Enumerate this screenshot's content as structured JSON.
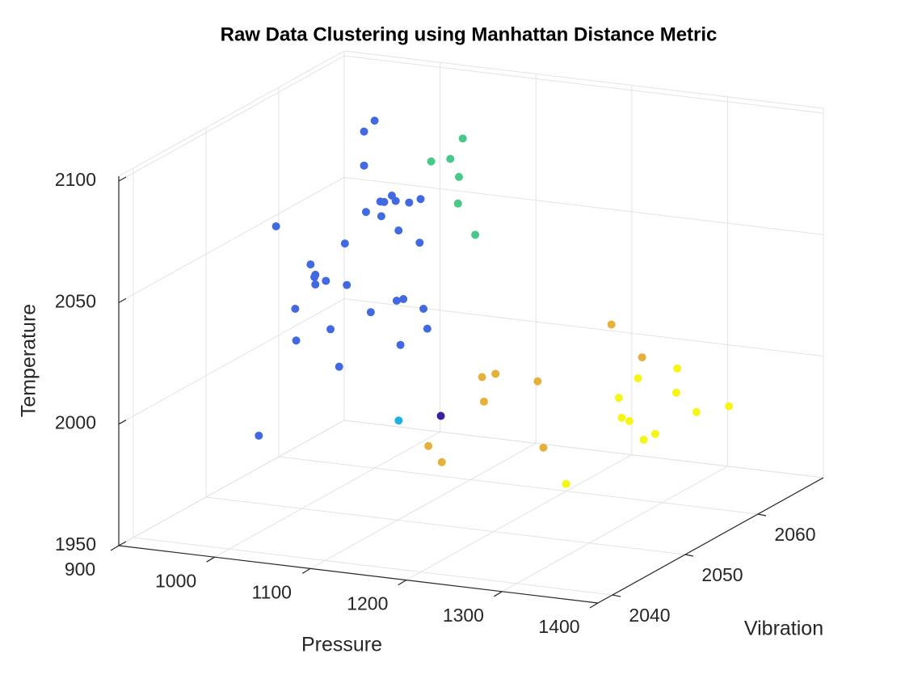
{
  "chart_data": {
    "type": "scatter3d",
    "title": "Raw Data Clustering using Manhattan Distance Metric",
    "xlabel": "Pressure",
    "ylabel": "Vibration",
    "zlabel": "Temperature",
    "xlim": [
      900,
      1400
    ],
    "ylim": [
      2038,
      2069
    ],
    "zlim": [
      1950,
      2102
    ],
    "xticks": [
      900,
      1000,
      1100,
      1200,
      1300,
      1400
    ],
    "yticks": [
      2040,
      2050,
      2060
    ],
    "zticks": [
      1950,
      2000,
      2050,
      2100
    ],
    "grid": true,
    "series": [
      {
        "color": "#4169e1",
        "x": [
          1000,
          989,
          989,
          1011,
          1006,
          1010,
          1018,
          1022,
          1036,
          1048,
          991,
          1007,
          1025,
          1047,
          969,
          1047,
          1052,
          1051,
          1063,
          1052,
          971,
          1030,
          1023,
          1051,
          1031,
          996,
          1055,
          954,
          1032,
          1027,
          963,
          993
        ],
        "y": [
          2060,
          2060,
          2060,
          2045,
          2060,
          2060,
          2060,
          2060,
          2060,
          2060,
          2060,
          2060,
          2060,
          2060,
          2060,
          2045,
          2045,
          2045,
          2045,
          2045,
          2060,
          2060,
          2060,
          2060,
          2045,
          2060,
          2060,
          2060,
          2045,
          2060,
          2060,
          2045
        ],
        "z": [
          2093,
          2088,
          2074,
          2075,
          2060,
          2060,
          2063,
          2061,
          2061,
          2063,
          2055,
          2054,
          2049,
          2045,
          2041,
          2061,
          2057,
          2056,
          2055,
          2053,
          2024,
          2021,
          2020,
          2018,
          2042,
          2014,
          2010,
          2005,
          2029,
          2002,
          1990,
          1988
        ]
      },
      {
        "color": "#1cb3e0",
        "x": [
          1101
        ],
        "y": [
          2050
        ],
        "z": [
          1991
        ]
      },
      {
        "color": "#3b1f9e",
        "x": [
          1145
        ],
        "y": [
          2050
        ],
        "z": [
          1995
        ]
      },
      {
        "color": "#48c98a",
        "x": [
          1092,
          1059,
          1079,
          1088,
          1087,
          1105
        ],
        "y": [
          2060,
          2060,
          2060,
          2060,
          2060,
          2060
        ],
        "z": [
          2090,
          2079,
          2081,
          2074,
          2063,
          2051
        ]
      },
      {
        "color": "#e6b13a",
        "x": [
          1323,
          1355,
          1202,
          1188,
          1246,
          1190,
          1132,
          1146,
          1252
        ],
        "y": [
          2050,
          2050,
          2050,
          2050,
          2050,
          2050,
          2050,
          2050,
          2050
        ],
        "z": [
          2041,
          2029,
          2015,
          2013,
          2014,
          2003,
          1982,
          1976,
          1987
        ]
      },
      {
        "color": "#f5f516",
        "x": [
          1331,
          1290,
          1330,
          1270,
          1385,
          1351,
          1273,
          1281,
          1308,
          1296,
          1215
        ],
        "y": [
          2058,
          2058,
          2058,
          2058,
          2058,
          2058,
          2058,
          2058,
          2058,
          2058,
          2058
        ],
        "z": [
          2010,
          2004,
          2000,
          1995,
          1997,
          1993,
          1987,
          1986,
          1982,
          1979,
          1957
        ]
      }
    ]
  }
}
